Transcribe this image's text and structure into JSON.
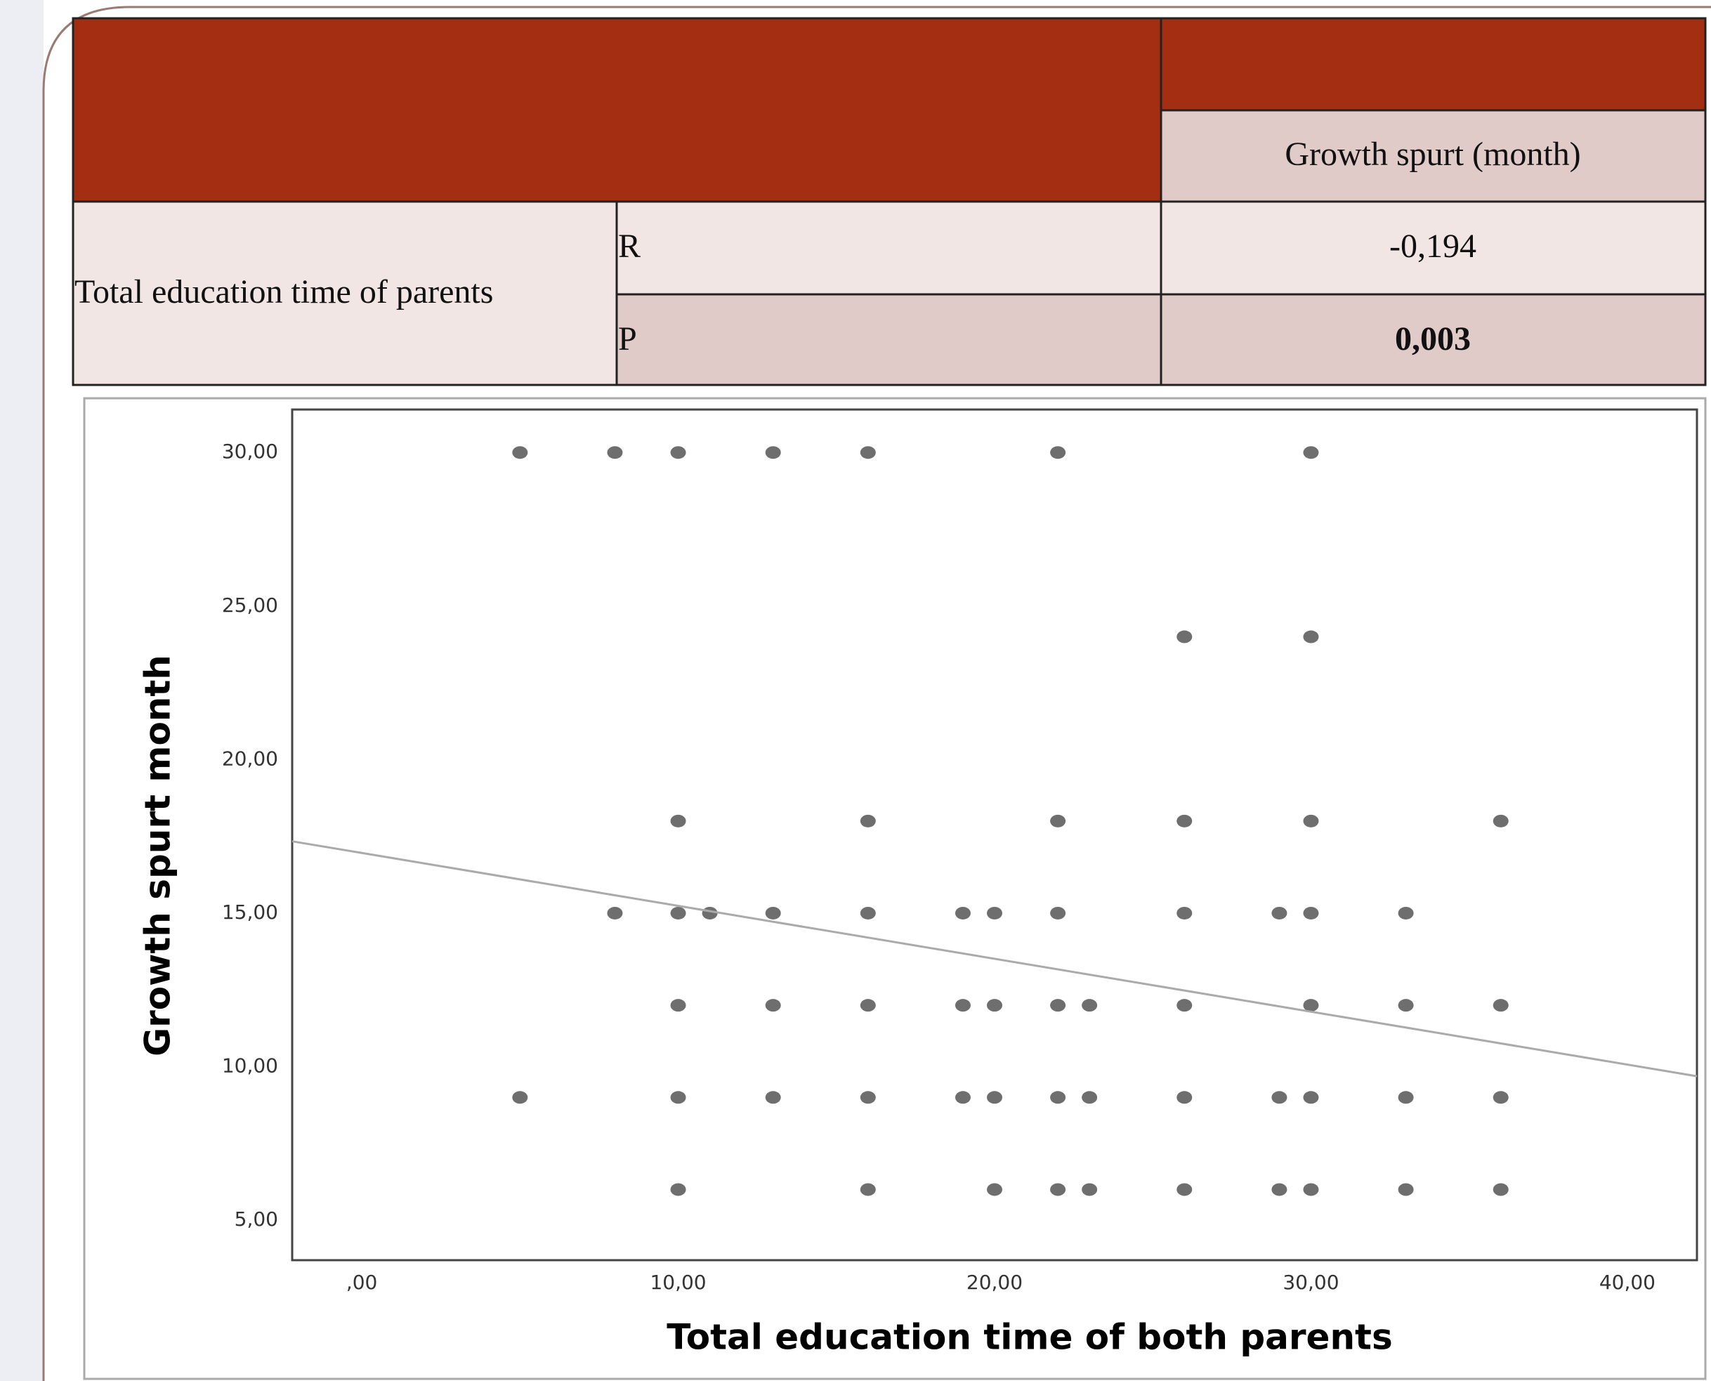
{
  "table": {
    "header": "Growth spurt (month)",
    "row_label": "Total education time of parents",
    "rows": [
      [
        "R",
        "-0,194"
      ],
      [
        "P",
        "0,003"
      ]
    ]
  },
  "chart_data": {
    "type": "scatter",
    "x_label": "Total education time of both parents",
    "y_label": "Growth spurt month",
    "xlim": [
      -2.2,
      42.2
    ],
    "ylim": [
      3.7,
      31.4
    ],
    "xticks": [
      {
        "value": 0,
        "label": ",00"
      },
      {
        "value": 10,
        "label": "10,00"
      },
      {
        "value": 20,
        "label": "20,00"
      },
      {
        "value": 30,
        "label": "30,00"
      },
      {
        "value": 40,
        "label": "40,00"
      }
    ],
    "yticks": [
      {
        "value": 5,
        "label": "5,00"
      },
      {
        "value": 10,
        "label": "10,00"
      },
      {
        "value": 15,
        "label": "15,00"
      },
      {
        "value": 20,
        "label": "20,00"
      },
      {
        "value": 25,
        "label": "25,00"
      },
      {
        "value": 30,
        "label": "30,00"
      }
    ],
    "series": [
      {
        "color": "#6e6e6e",
        "x": [
          5,
          8,
          10,
          13,
          16,
          22,
          30,
          26,
          30,
          10,
          16,
          22,
          26,
          30,
          36,
          8,
          10,
          11,
          13,
          16,
          19,
          20,
          22,
          26,
          29,
          30,
          33,
          10,
          13,
          16,
          19,
          20,
          22,
          23,
          26,
          30,
          33,
          36,
          5,
          10,
          13,
          16,
          19,
          20,
          22,
          23,
          26,
          29,
          30,
          33,
          36,
          10,
          16,
          20,
          22,
          23,
          26,
          29,
          30,
          33,
          36
        ],
        "y": [
          30,
          30,
          30,
          30,
          30,
          30,
          30,
          24,
          24,
          18,
          18,
          18,
          18,
          18,
          18,
          15,
          15,
          15,
          15,
          15,
          15,
          15,
          15,
          15,
          15,
          15,
          15,
          12,
          12,
          12,
          12,
          12,
          12,
          12,
          12,
          12,
          12,
          12,
          9,
          9,
          9,
          9,
          9,
          9,
          9,
          9,
          9,
          9,
          9,
          9,
          9,
          6,
          6,
          6,
          6,
          6,
          6,
          6,
          6,
          6,
          6
        ]
      }
    ],
    "fit_line": {
      "color": "#aaaaaa",
      "x": [
        -2.2,
        42.2
      ],
      "y": [
        17.34,
        9.69
      ]
    }
  }
}
